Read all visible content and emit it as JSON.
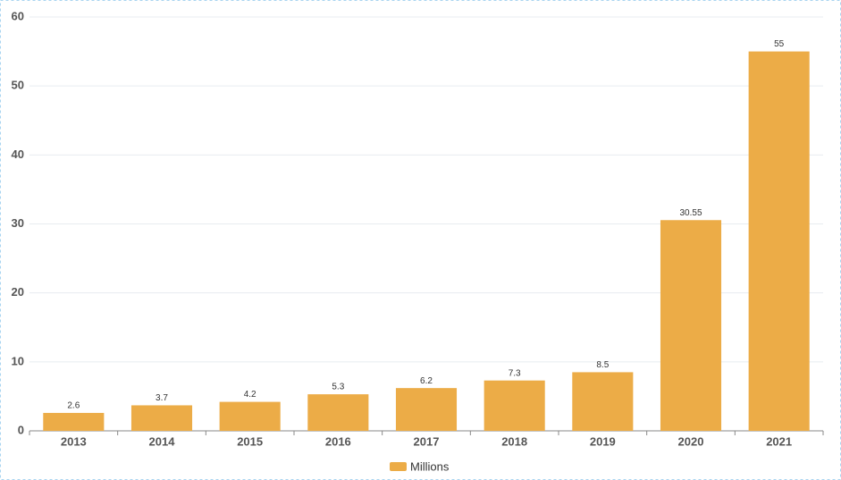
{
  "chart_data": {
    "type": "bar",
    "categories": [
      "2013",
      "2014",
      "2015",
      "2016",
      "2017",
      "2018",
      "2019",
      "2020",
      "2021"
    ],
    "series": [
      {
        "name": "Millions",
        "color": "#ecac47",
        "values": [
          2.6,
          3.7,
          4.2,
          5.3,
          6.2,
          7.3,
          8.5,
          30.55,
          55
        ]
      }
    ],
    "ylim": [
      0,
      60
    ],
    "yticks": [
      0,
      10,
      20,
      30,
      40,
      50,
      60
    ],
    "grid": true,
    "legend": "bottom"
  }
}
